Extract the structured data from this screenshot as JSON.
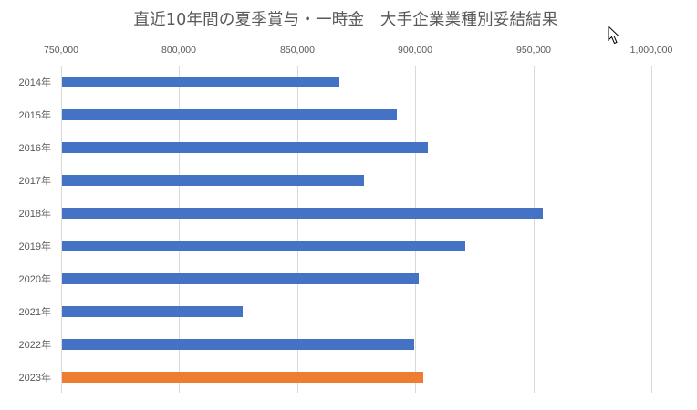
{
  "chart_data": {
    "type": "bar",
    "orientation": "horizontal",
    "title": "直近10年間の夏季賞与・一時金　大手企業業種別妥結結果",
    "xlabel": "",
    "ylabel": "",
    "categories": [
      "2014年",
      "2015年",
      "2016年",
      "2017年",
      "2018年",
      "2019年",
      "2020年",
      "2021年",
      "2022年",
      "2023年"
    ],
    "series": [
      {
        "name": "夏季賞与・一時金",
        "values": [
          867900,
          892200,
          905300,
          878300,
          954000,
          921200,
          901500,
          826900,
          899500,
          903400
        ]
      }
    ],
    "bar_colors": [
      "#4472c4",
      "#4472c4",
      "#4472c4",
      "#4472c4",
      "#4472c4",
      "#4472c4",
      "#4472c4",
      "#4472c4",
      "#4472c4",
      "#ed7d31"
    ],
    "xlim": [
      750000,
      1000000
    ],
    "x_ticks": [
      "750,000",
      "800,000",
      "850,000",
      "900,000",
      "950,000",
      "1,000,000"
    ],
    "x_tick_values": [
      750000,
      800000,
      850000,
      900000,
      950000,
      1000000
    ],
    "x_axis_position": "top",
    "grid": true,
    "legend": false,
    "highlight_color": "#ed7d31",
    "default_color": "#4472c4"
  },
  "cursor": {
    "icon": "mouse-pointer-icon"
  }
}
